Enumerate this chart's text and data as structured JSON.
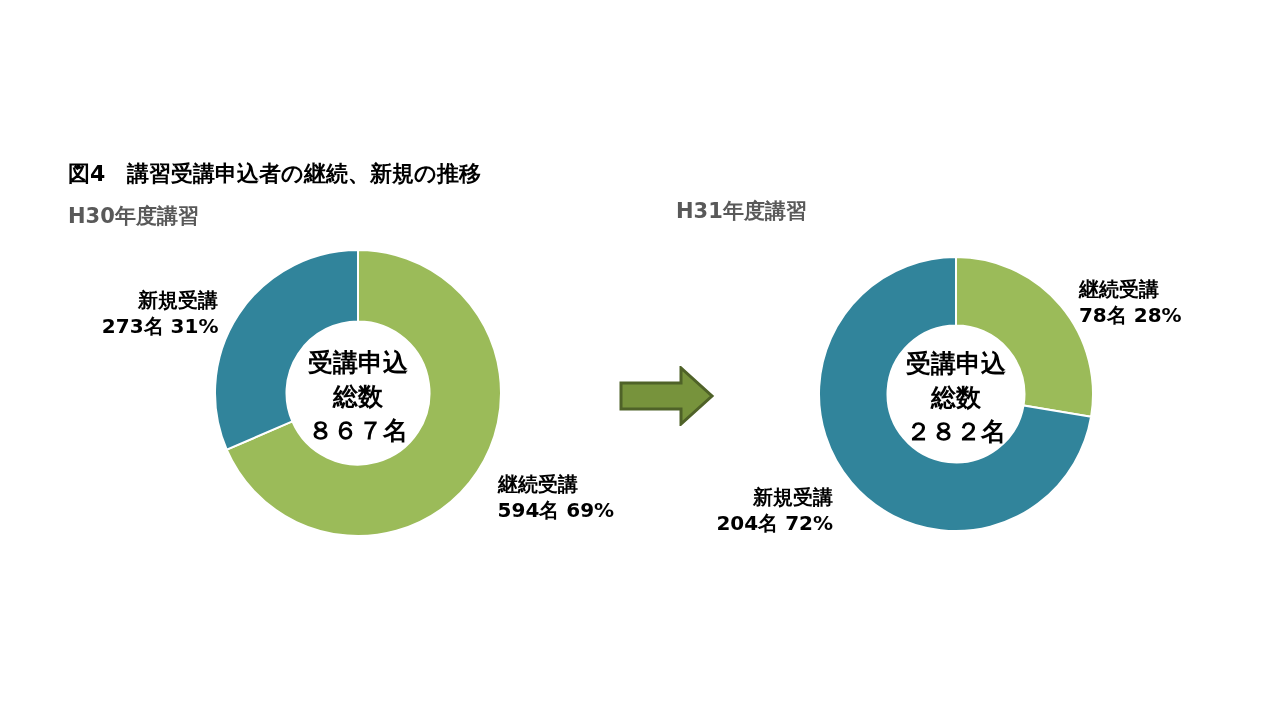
{
  "chart_data": [
    {
      "type": "donut",
      "title": "図4　講習受講申込者の継続、新規の推移",
      "subtitle": "H30年度講習",
      "categories": [
        "継続受講",
        "新規受講"
      ],
      "values": [
        594,
        273
      ],
      "colors": [
        "#9bbb59",
        "#31849b"
      ],
      "value_labels": [
        "594名 69%",
        "273名 31%"
      ],
      "annotations": [
        "受講申込総数",
        "８６７名"
      ]
    },
    {
      "type": "donut",
      "title": "H31年度講習",
      "categories": [
        "継続受講",
        "新規受講"
      ],
      "values": [
        78,
        204
      ],
      "colors": [
        "#9bbb59",
        "#31849b"
      ],
      "value_labels": [
        "78名 28%",
        "204名 72%"
      ],
      "annotations": [
        "受講申込総数",
        "２８２名"
      ]
    }
  ]
}
